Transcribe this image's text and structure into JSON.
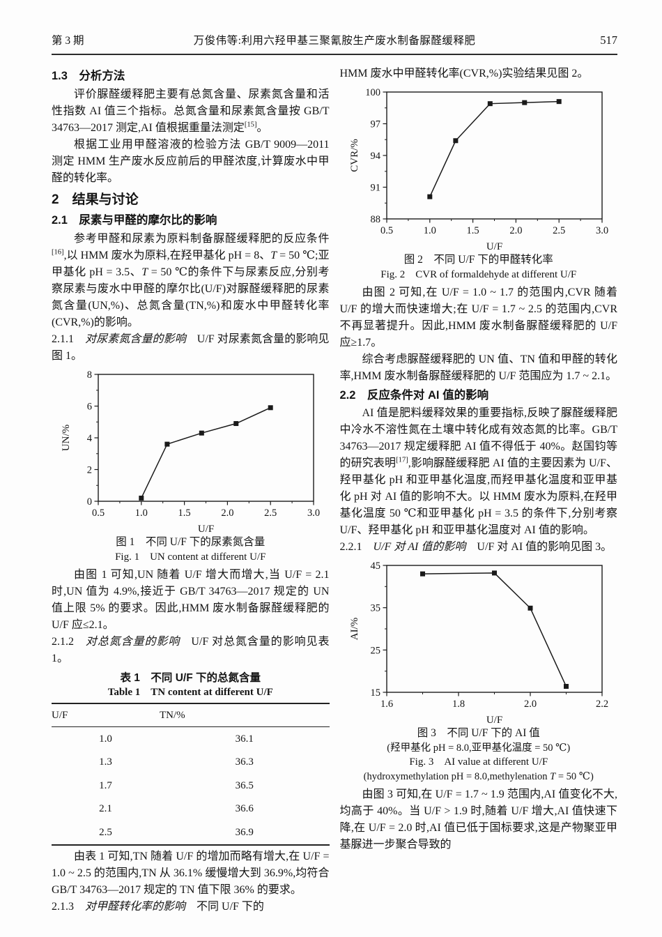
{
  "header": {
    "issue": "第 3 期",
    "title": "万俊伟等:利用六羟甲基三聚氰胺生产废水制备脲醛缓释肥",
    "page_no": "517"
  },
  "chart_data": [
    {
      "type": "line",
      "title": "图 1 不同 U/F 下的尿素氮含量",
      "caption_zh": "图 1 不同 U/F 下的尿素氮含量",
      "caption_en": "Fig. 1 UN content at different U/F",
      "x": [
        1.0,
        1.3,
        1.7,
        2.1,
        2.5
      ],
      "y": [
        0.2,
        3.6,
        4.3,
        4.9,
        5.9
      ],
      "xlabel": "U/F",
      "ylabel": "UN/%",
      "xlim": [
        0.5,
        3.0
      ],
      "ylim": [
        0,
        8
      ],
      "xticks": [
        0.5,
        1.0,
        1.5,
        2.0,
        2.5,
        3.0
      ],
      "xtick_labels": [
        "0.5",
        "1.0",
        "1.5",
        "2.0",
        "2.5",
        "3.0"
      ],
      "xminor": [
        0.75,
        1.25,
        1.75,
        2.25,
        2.75
      ],
      "yticks": [
        0,
        2,
        4,
        6,
        8
      ],
      "ytick_labels": [
        "0",
        "2",
        "4",
        "6",
        "8"
      ],
      "yminor": [
        1,
        3,
        5,
        7
      ],
      "grid": false,
      "legend": "none",
      "marker": "square",
      "line_color": "#1a1a1a"
    },
    {
      "type": "line",
      "title": "图 2 不同 U/F 下的甲醛转化率",
      "caption_zh": "图 2 不同 U/F 下的甲醛转化率",
      "caption_en": "Fig. 2 CVR of formaldehyde at different U/F",
      "x": [
        1.0,
        1.3,
        1.7,
        2.1,
        2.5
      ],
      "y": [
        90.1,
        95.4,
        98.9,
        99.0,
        99.1
      ],
      "xlabel": "U/F",
      "ylabel": "CVR/%",
      "xlim": [
        0.5,
        3.0
      ],
      "ylim": [
        88,
        100
      ],
      "xticks": [
        0.5,
        1.0,
        1.5,
        2.0,
        2.5,
        3.0
      ],
      "xtick_labels": [
        "0.5",
        "1.0",
        "1.5",
        "2.0",
        "2.5",
        "3.0"
      ],
      "xminor": [
        0.75,
        1.25,
        1.75,
        2.25,
        2.75
      ],
      "yticks": [
        88,
        91,
        94,
        97,
        100
      ],
      "ytick_labels": [
        "88",
        "91",
        "94",
        "97",
        "100"
      ],
      "yminor": [
        89.5,
        92.5,
        95.5,
        98.5
      ],
      "grid": false,
      "legend": "none",
      "marker": "square",
      "line_color": "#1a1a1a"
    },
    {
      "type": "line",
      "title": "图 3 不同 U/F 下的 AI 值",
      "caption_zh": "图 3 不同 U/F 下的 AI 值",
      "cond_zh": "(羟甲基化 pH = 8.0,亚甲基化温度 = 50 ℃)",
      "caption_en": "Fig. 3 AI value at different U/F",
      "cond_en_rich": [
        {
          "t": "(hydroxymethylation pH = 8.0,methylenation ",
          "s": ""
        },
        {
          "t": "T",
          "s": "i"
        },
        {
          "t": " = 50 ℃)",
          "s": ""
        }
      ],
      "x": [
        1.7,
        1.9,
        2.0,
        2.1
      ],
      "y": [
        43.0,
        43.2,
        34.9,
        16.4
      ],
      "xlabel": "U/F",
      "ylabel": "AI/%",
      "xlim": [
        1.6,
        2.2
      ],
      "ylim": [
        15,
        45
      ],
      "xticks": [
        1.6,
        1.8,
        2.0,
        2.2
      ],
      "xtick_labels": [
        "1.6",
        "1.8",
        "2.0",
        "2.2"
      ],
      "xminor": [
        1.7,
        1.9,
        2.1
      ],
      "yticks": [
        15,
        25,
        35,
        45
      ],
      "ytick_labels": [
        "15",
        "25",
        "35",
        "45"
      ],
      "yminor": [
        20,
        30,
        40
      ],
      "grid": false,
      "legend": "none",
      "marker": "square",
      "line_color": "#1a1a1a"
    }
  ],
  "left": {
    "h13": "1.3 分析方法",
    "p_eval_rich": [
      {
        "t": "评价脲醛缓释肥主要有总氮含量、尿素氮含量和活性指数 AI 值三个指标。总氮含量和尿素氮含量按 GB/T 34763—2017 测定,AI 值根据重量法测定",
        "s": ""
      },
      {
        "t": "[15]",
        "s": "sup"
      },
      {
        "t": "。",
        "s": ""
      }
    ],
    "p_gbt9009": "根据工业用甲醛溶液的检验方法 GB/T 9009—2011 测定 HMM 生产废水反应前后的甲醛浓度,计算废水中甲醛的转化率。",
    "h2": "2 结果与讨论",
    "h21": "2.1 尿素与甲醛的摩尔比的影响",
    "p_cond_rich": [
      {
        "t": "参考甲醛和尿素为原料制备脲醛缓释肥的反应条件",
        "s": ""
      },
      {
        "t": "[16]",
        "s": "sup"
      },
      {
        "t": ",以 HMM 废水为原料,在羟甲基化 pH = 8、",
        "s": ""
      },
      {
        "t": "T",
        "s": "i"
      },
      {
        "t": " = 50 ℃;亚甲基化 pH = 3.5、",
        "s": ""
      },
      {
        "t": "T",
        "s": "i"
      },
      {
        "t": " = 50 ℃的条件下与尿素反应,分别考察尿素与废水中甲醛的摩尔比(U/F)对脲醛缓释肥的尿素氮含量(UN,%)、总氮含量(TN,%)和废水中甲醛转化率(CVR,%)的影响。",
        "s": ""
      }
    ],
    "p_211_rich": [
      {
        "t": "2.1.1",
        "s": ""
      },
      {
        "t": " 对尿素氮含量的影响",
        "s": "kai"
      },
      {
        "t": " U/F 对尿素氮含量的影响见图 1。",
        "s": ""
      }
    ],
    "p_fig1": "由图 1 可知,UN 随着 U/F 增大而增大,当 U/F = 2.1 时,UN 值为 4.9%,接近于 GB/T 34763—2017 规定的 UN 值上限 5% 的要求。因此,HMM 废水制备脲醛缓释肥的 U/F 应≤2.1。",
    "p_212_rich": [
      {
        "t": "2.1.2",
        "s": ""
      },
      {
        "t": " 对总氮含量的影响",
        "s": "kai"
      },
      {
        "t": " U/F 对总氮含量的影响见表 1。",
        "s": ""
      }
    ],
    "table1": {
      "title_zh": "表 1 不同 U/F 下的总氮含量",
      "title_en": "Table 1 TN content at different U/F",
      "headers": [
        "U/F",
        "TN/%"
      ],
      "rows": [
        [
          "1.0",
          "36.1"
        ],
        [
          "1.3",
          "36.3"
        ],
        [
          "1.7",
          "36.5"
        ],
        [
          "2.1",
          "36.6"
        ],
        [
          "2.5",
          "36.9"
        ]
      ]
    },
    "p_table": "由表 1 可知,TN 随着 U/F 的增加而略有增大,在 U/F = 1.0 ~ 2.5 的范围内,TN 从 36.1% 缓慢增大到 36.9%,均符合 GB/T 34763—2017 规定的 TN 值下限 36% 的要求。",
    "p_213_rich": [
      {
        "t": "2.1.3",
        "s": ""
      },
      {
        "t": " 对甲醛转化率的影响",
        "s": "kai"
      },
      {
        "t": " 不同 U/F 下的",
        "s": ""
      }
    ]
  },
  "right": {
    "p_intro": "HMM 废水中甲醛转化率(CVR,%)实验结果见图 2。",
    "p_fig2": "由图 2 可知,在 U/F = 1.0 ~ 1.7 的范围内,CVR 随着 U/F 的增大而快速增大;在 U/F = 1.7 ~ 2.5 的范围内,CVR 不再显著提升。因此,HMM 废水制备脲醛缓释肥的 U/F 应≥1.7。",
    "p_range": "综合考虑脲醛缓释肥的 UN 值、TN 值和甲醛的转化率,HMM 废水制备脲醛缓释肥的 U/F 范围应为 1.7 ~ 2.1。",
    "h22": "2.2 反应条件对 AI 值的影响",
    "p_ai_rich": [
      {
        "t": "AI 值是肥料缓释效果的重要指标,反映了脲醛缓释肥中冷水不溶性氮在土壤中转化成有效态氮的比率。GB/T 34763—2017 规定缓释肥 AI 值不得低于 40%。赵国钧等的研究表明",
        "s": ""
      },
      {
        "t": "[17]",
        "s": "sup"
      },
      {
        "t": ",影响脲醛缓释肥 AI 值的主要因素为 U/F、羟甲基化 pH 和亚甲基化温度,而羟甲基化温度和亚甲基化 pH 对 AI 值的影响不大。以 HMM 废水为原料,在羟甲基化温度 50 ℃和亚甲基化 pH = 3.5 的条件下,分别考察 U/F、羟甲基化 pH 和亚甲基化温度对 AI 值的影响。",
        "s": ""
      }
    ],
    "p_221_rich": [
      {
        "t": "2.2.1",
        "s": ""
      },
      {
        "t": " U/F 对 AI 值的影响",
        "s": "kai"
      },
      {
        "t": " U/F 对 AI 值的影响见图 3。",
        "s": ""
      }
    ],
    "p_fig3": "由图 3 可知,在 U/F = 1.7 ~ 1.9 范围内,AI 值变化不大,均高于 40%。当 U/F > 1.9 时,随着 U/F 增大,AI 值快速下降,在 U/F = 2.0 时,AI 值已低于国标要求,这是产物聚亚甲基脲进一步聚合导致的"
  }
}
